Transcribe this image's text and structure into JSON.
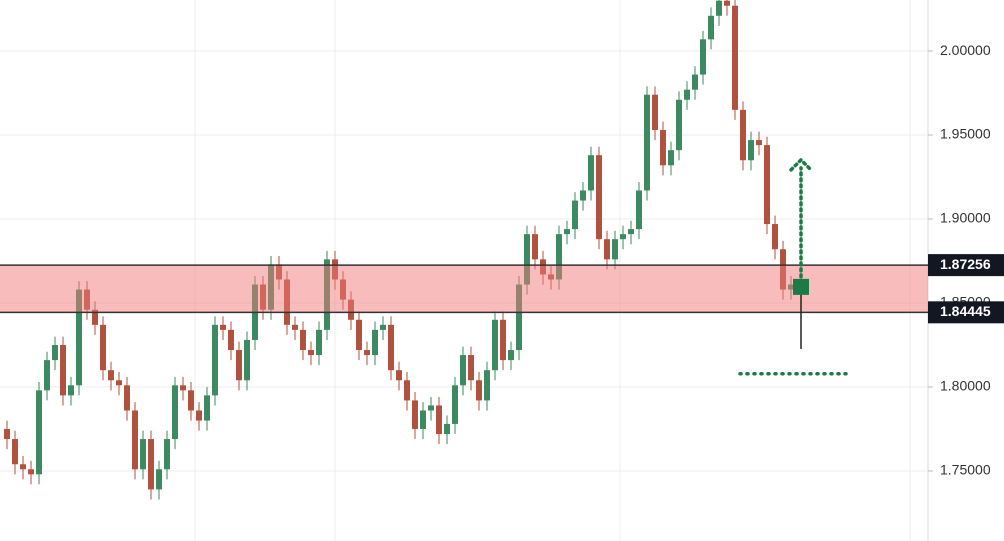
{
  "chart_data": {
    "type": "candlestick",
    "open": [
      1.775,
      1.769,
      1.754,
      1.751,
      1.748,
      1.798,
      1.816,
      1.825,
      1.795,
      1.801,
      1.858,
      1.846,
      1.837,
      1.81,
      1.804,
      1.801,
      1.786,
      1.751,
      1.769,
      1.739,
      1.751,
      1.769,
      1.801,
      1.798,
      1.786,
      1.78,
      1.795,
      1.837,
      1.834,
      1.822,
      1.804,
      1.828,
      1.861,
      1.846,
      1.873,
      1.864,
      1.837,
      1.834,
      1.822,
      1.819,
      1.834,
      1.876,
      1.864,
      1.852,
      1.84,
      1.822,
      1.819,
      1.834,
      1.837,
      1.81,
      1.804,
      1.792,
      1.775,
      1.786,
      1.789,
      1.772,
      1.778,
      1.801,
      1.819,
      1.804,
      1.792,
      1.81,
      1.84,
      1.816,
      1.822,
      1.861,
      1.891,
      1.876,
      1.867,
      1.864,
      1.891,
      1.894,
      1.911,
      1.917,
      1.938,
      1.888,
      1.876,
      1.888,
      1.891,
      1.894,
      1.917,
      1.974,
      1.953,
      1.932,
      1.941,
      1.971,
      1.977,
      1.986,
      2.007,
      2.021,
      2.03,
      2.027,
      1.965,
      1.935,
      1.947,
      1.944,
      1.897,
      1.882,
      1.858
    ],
    "high": [
      1.78,
      1.774,
      1.759,
      1.756,
      1.803,
      1.821,
      1.83,
      1.83,
      1.806,
      1.863,
      1.863,
      1.851,
      1.842,
      1.815,
      1.809,
      1.806,
      1.791,
      1.774,
      1.774,
      1.756,
      1.774,
      1.806,
      1.806,
      1.803,
      1.791,
      1.8,
      1.842,
      1.842,
      1.839,
      1.827,
      1.833,
      1.866,
      1.866,
      1.878,
      1.878,
      1.869,
      1.842,
      1.839,
      1.827,
      1.839,
      1.881,
      1.881,
      1.869,
      1.857,
      1.845,
      1.827,
      1.839,
      1.842,
      1.842,
      1.815,
      1.809,
      1.797,
      1.791,
      1.794,
      1.794,
      1.783,
      1.806,
      1.824,
      1.824,
      1.809,
      1.815,
      1.845,
      1.845,
      1.827,
      1.866,
      1.896,
      1.896,
      1.881,
      1.872,
      1.896,
      1.899,
      1.916,
      1.922,
      1.943,
      1.943,
      1.893,
      1.893,
      1.896,
      1.899,
      1.922,
      1.979,
      1.979,
      1.958,
      1.946,
      1.976,
      1.982,
      1.991,
      2.012,
      2.026,
      2.035,
      2.035,
      2.032,
      1.97,
      1.952,
      1.952,
      1.949,
      1.902,
      1.887,
      1.866
    ],
    "low": [
      1.763,
      1.748,
      1.745,
      1.742,
      1.742,
      1.792,
      1.81,
      1.789,
      1.789,
      1.795,
      1.84,
      1.831,
      1.804,
      1.798,
      1.795,
      1.78,
      1.745,
      1.745,
      1.733,
      1.733,
      1.745,
      1.763,
      1.792,
      1.78,
      1.774,
      1.774,
      1.789,
      1.828,
      1.816,
      1.798,
      1.798,
      1.822,
      1.84,
      1.84,
      1.858,
      1.831,
      1.828,
      1.816,
      1.813,
      1.813,
      1.828,
      1.858,
      1.846,
      1.834,
      1.816,
      1.813,
      1.813,
      1.828,
      1.804,
      1.798,
      1.786,
      1.769,
      1.769,
      1.78,
      1.766,
      1.766,
      1.772,
      1.795,
      1.798,
      1.786,
      1.786,
      1.804,
      1.81,
      1.81,
      1.816,
      1.855,
      1.87,
      1.861,
      1.858,
      1.858,
      1.885,
      1.888,
      1.905,
      1.911,
      1.882,
      1.87,
      1.87,
      1.882,
      1.885,
      1.888,
      1.911,
      1.947,
      1.926,
      1.926,
      1.935,
      1.965,
      1.971,
      1.98,
      2.001,
      2.015,
      2.021,
      1.959,
      1.929,
      1.929,
      1.938,
      1.891,
      1.876,
      1.852,
      1.852
    ],
    "close": [
      1.769,
      1.754,
      1.751,
      1.748,
      1.798,
      1.816,
      1.825,
      1.795,
      1.801,
      1.858,
      1.846,
      1.837,
      1.81,
      1.804,
      1.801,
      1.786,
      1.751,
      1.769,
      1.739,
      1.751,
      1.769,
      1.801,
      1.798,
      1.786,
      1.78,
      1.795,
      1.837,
      1.834,
      1.822,
      1.804,
      1.828,
      1.861,
      1.846,
      1.873,
      1.864,
      1.837,
      1.834,
      1.822,
      1.819,
      1.834,
      1.876,
      1.864,
      1.852,
      1.84,
      1.822,
      1.819,
      1.834,
      1.837,
      1.81,
      1.804,
      1.792,
      1.775,
      1.786,
      1.789,
      1.772,
      1.778,
      1.801,
      1.819,
      1.804,
      1.792,
      1.81,
      1.84,
      1.816,
      1.822,
      1.861,
      1.891,
      1.876,
      1.867,
      1.864,
      1.891,
      1.894,
      1.911,
      1.917,
      1.938,
      1.888,
      1.876,
      1.888,
      1.891,
      1.894,
      1.917,
      1.974,
      1.953,
      1.932,
      1.941,
      1.971,
      1.977,
      1.986,
      2.007,
      2.021,
      2.03,
      2.027,
      1.965,
      1.935,
      1.947,
      1.944,
      1.897,
      1.882,
      1.858,
      1.861
    ],
    "up_color": "#3d8a62",
    "down_color": "#b0523f",
    "ylim": [
      1.7083,
      2.0304
    ],
    "yticks": [
      {
        "value": 1.75,
        "label": "1.75000"
      },
      {
        "value": 1.8,
        "label": "1.80000"
      },
      {
        "value": 1.85,
        "label": "1.85000"
      },
      {
        "value": 1.9,
        "label": "1.90000"
      },
      {
        "value": 1.95,
        "label": "1.95000"
      },
      {
        "value": 2.0,
        "label": "2.00000"
      }
    ],
    "grid": true,
    "zone": {
      "high": {
        "value": 1.87256,
        "label": "1.87256"
      },
      "low": {
        "value": 1.84445,
        "label": "1.84445"
      },
      "color": "#f27a7a"
    },
    "entry": 1.8596,
    "target": 1.9352,
    "stop": 1.8079,
    "annotation_color": "#1b7a45"
  }
}
